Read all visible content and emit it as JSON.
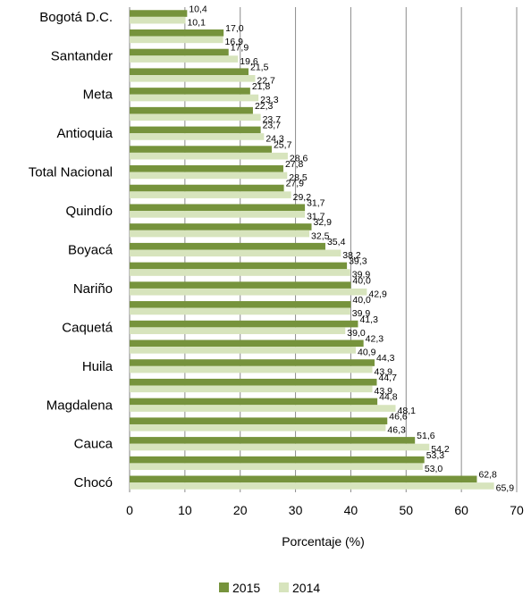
{
  "chart_data": {
    "type": "bar",
    "orientation": "horizontal",
    "xlabel": "Porcentaje (%)",
    "xlim": [
      0,
      70
    ],
    "xticks": [
      0,
      10,
      20,
      30,
      40,
      50,
      60,
      70
    ],
    "grid": "vertical",
    "legend_position": "bottom",
    "category_labels": [
      "Bogotá D.C.",
      "Santander",
      "Meta",
      "Antioquia",
      "Total Nacional",
      "Quindío",
      "Boyacá",
      "Nariño",
      "Caquetá",
      "Huila",
      "Magdalena",
      "Cauca",
      "Chocó"
    ],
    "categories": [
      "Bogotá D.C.",
      "",
      "Santander",
      "",
      "Meta",
      "",
      "Antioquia",
      "",
      "Total Nacional",
      "",
      "Quindío",
      "",
      "Boyacá",
      "",
      "Nariño",
      "",
      "Caquetá",
      "",
      "Huila",
      "",
      "Magdalena",
      "",
      "Cauca",
      "",
      "Chocó"
    ],
    "series": [
      {
        "name": "2015",
        "color": "#76933c",
        "values": [
          10.4,
          17.0,
          17.9,
          21.5,
          21.8,
          22.3,
          23.7,
          25.7,
          27.8,
          27.9,
          31.7,
          32.9,
          35.4,
          39.3,
          40.0,
          40.0,
          41.3,
          42.3,
          44.3,
          44.7,
          44.8,
          46.6,
          51.6,
          53.3,
          62.8
        ],
        "labels": [
          "10,4",
          "17,0",
          "17,9",
          "21,5",
          "21,8",
          "22,3",
          "23,7",
          "25,7",
          "27,8",
          "27,9",
          "31,7",
          "32,9",
          "35,4",
          "39,3",
          "40,0",
          "40,0",
          "41,3",
          "42,3",
          "44,3",
          "44,7",
          "44,8",
          "46,6",
          "51,6",
          "53,3",
          "62,8"
        ]
      },
      {
        "name": "2014",
        "color": "#d7e4bd",
        "values": [
          10.1,
          16.9,
          19.6,
          22.7,
          23.3,
          23.7,
          24.3,
          28.6,
          28.5,
          29.2,
          31.7,
          32.5,
          38.2,
          39.9,
          42.9,
          39.9,
          39.0,
          40.9,
          43.9,
          43.9,
          48.1,
          46.3,
          54.2,
          53.0,
          65.9
        ],
        "labels": [
          "10,1",
          "16,9",
          "19,6",
          "22,7",
          "23,3",
          "23,7",
          "24,3",
          "28,6",
          "28,5",
          "29,2",
          "31,7",
          "32,5",
          "38,2",
          "39,9",
          "42,9",
          "39,9",
          "39,0",
          "40,9",
          "43,9",
          "43,9",
          "48,1",
          "46,3",
          "54,2",
          "53,0",
          "65,9"
        ]
      }
    ]
  }
}
